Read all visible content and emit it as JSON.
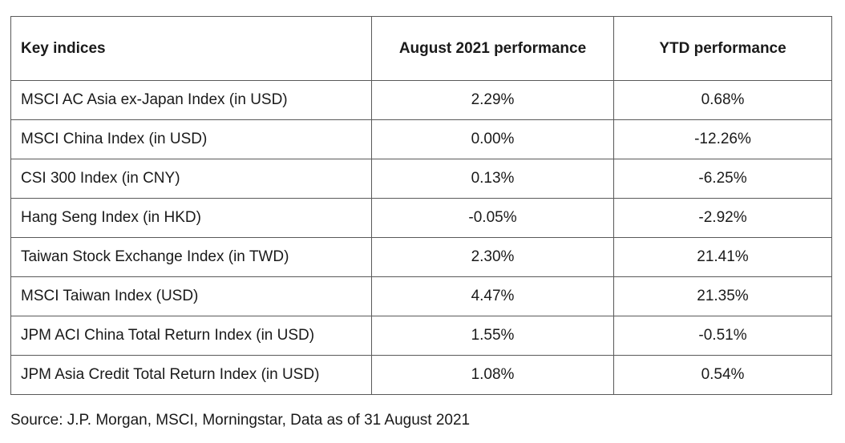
{
  "table": {
    "headers": [
      "Key indices",
      "August 2021 performance",
      "YTD performance"
    ],
    "rows": [
      [
        "MSCI AC Asia ex-Japan Index (in USD)",
        "2.29%",
        "0.68%"
      ],
      [
        "MSCI China Index (in USD)",
        "0.00%",
        "-12.26%"
      ],
      [
        "CSI 300 Index (in CNY)",
        "0.13%",
        "-6.25%"
      ],
      [
        "Hang Seng Index (in HKD)",
        "-0.05%",
        "-2.92%"
      ],
      [
        "Taiwan Stock Exchange Index (in TWD)",
        "2.30%",
        "21.41%"
      ],
      [
        "MSCI Taiwan Index (USD)",
        "4.47%",
        "21.35%"
      ],
      [
        "JPM ACI China Total Return Index (in USD)",
        "1.55%",
        "-0.51%"
      ],
      [
        "JPM Asia Credit Total Return Index (in USD)",
        "1.08%",
        "0.54%"
      ]
    ]
  },
  "source_note": "Source: J.P. Morgan, MSCI, Morningstar, Data as of 31 August 2021"
}
